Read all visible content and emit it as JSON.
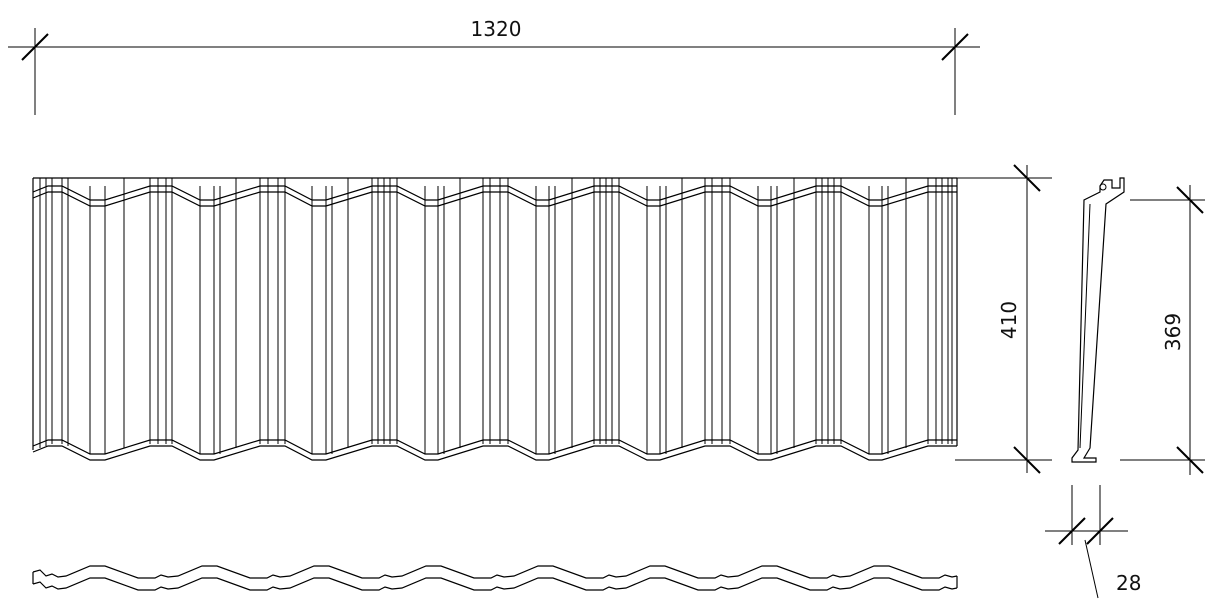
{
  "dimensions": {
    "width": "1320",
    "height": "410",
    "profile_height": "369",
    "depth": "28"
  },
  "colors": {
    "stroke": "#000000",
    "text": "#111111",
    "background": "#ffffff"
  }
}
